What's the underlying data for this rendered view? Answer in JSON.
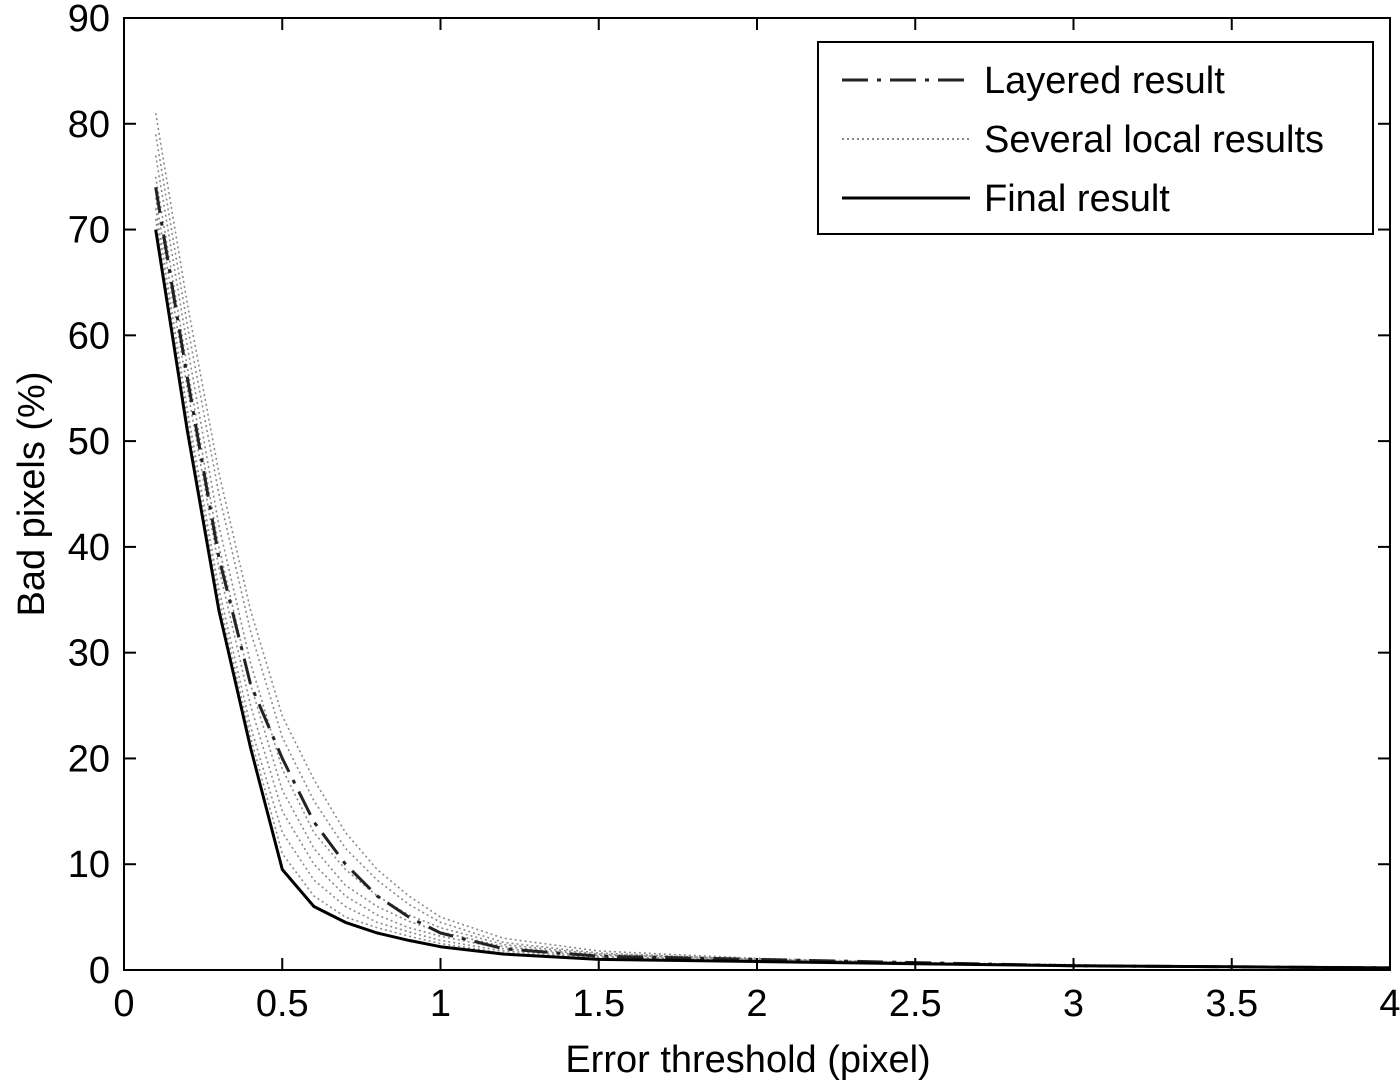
{
  "chart_data": {
    "type": "line",
    "title": "",
    "xlabel": "Error threshold (pixel)",
    "ylabel": "Bad pixels (%)",
    "xlim": [
      0,
      4
    ],
    "ylim": [
      0,
      90
    ],
    "xticks": [
      0,
      0.5,
      1,
      1.5,
      2,
      2.5,
      3,
      3.5,
      4
    ],
    "xtick_labels": [
      "0",
      "0.5",
      "1",
      "1.5",
      "2",
      "2.5",
      "3",
      "3.5",
      "4"
    ],
    "yticks": [
      0,
      10,
      20,
      30,
      40,
      50,
      60,
      70,
      80,
      90
    ],
    "ytick_labels": [
      "0",
      "10",
      "20",
      "30",
      "40",
      "50",
      "60",
      "70",
      "80",
      "90"
    ],
    "grid": false,
    "legend_position": "top-right",
    "colors": {
      "layered": "#222222",
      "local": "#8a8a8a",
      "final": "#000000"
    },
    "series": [
      {
        "name": "Layered result",
        "style": "dashdot",
        "x": [
          0.1,
          0.2,
          0.3,
          0.4,
          0.5,
          0.6,
          0.7,
          0.8,
          0.9,
          1.0,
          1.2,
          1.5,
          2.0,
          2.5,
          3.0,
          3.5,
          4.0
        ],
        "y": [
          74,
          56,
          39,
          27,
          20,
          14,
          10,
          7,
          5,
          3.5,
          2.0,
          1.3,
          1.0,
          0.7,
          0.4,
          0.3,
          0.2
        ]
      },
      {
        "name": "Several local results",
        "style": "dotted",
        "x": [
          0.1,
          0.2,
          0.3,
          0.4,
          0.5,
          0.6,
          0.7,
          0.8,
          0.9,
          1.0,
          1.2,
          1.5,
          2.0,
          2.5,
          3.0,
          3.5,
          4.0
        ],
        "y_family": [
          [
            71,
            52,
            35,
            22,
            11,
            7,
            5,
            4,
            3.2,
            2.5,
            1.6,
            1.1,
            0.8,
            0.6,
            0.4,
            0.3,
            0.2
          ],
          [
            72,
            53,
            36,
            23,
            13,
            8.5,
            6,
            4.5,
            3.6,
            2.8,
            1.8,
            1.2,
            0.9,
            0.6,
            0.4,
            0.3,
            0.2
          ],
          [
            73,
            55,
            38,
            25,
            15,
            10,
            7,
            5.2,
            4,
            3.2,
            2.0,
            1.3,
            0.9,
            0.6,
            0.4,
            0.3,
            0.2
          ],
          [
            75,
            57,
            40,
            27,
            17,
            11.5,
            8,
            6,
            4.6,
            3.6,
            2.2,
            1.4,
            1.0,
            0.7,
            0.4,
            0.3,
            0.2
          ],
          [
            77,
            59,
            42,
            29,
            19,
            13,
            9.5,
            7,
            5.2,
            4.0,
            2.4,
            1.5,
            1.0,
            0.7,
            0.4,
            0.3,
            0.2
          ],
          [
            79,
            61,
            45,
            32,
            22,
            16,
            11.5,
            8.5,
            6.2,
            4.5,
            2.6,
            1.6,
            1.0,
            0.7,
            0.4,
            0.3,
            0.2
          ],
          [
            81,
            63,
            47,
            34,
            24,
            18,
            13,
            9.5,
            7,
            5,
            3,
            1.8,
            1.1,
            0.7,
            0.5,
            0.3,
            0.2
          ]
        ]
      },
      {
        "name": "Final result",
        "style": "solid",
        "x": [
          0.1,
          0.2,
          0.3,
          0.4,
          0.5,
          0.6,
          0.7,
          0.8,
          0.9,
          1.0,
          1.2,
          1.5,
          2.0,
          2.5,
          3.0,
          3.5,
          4.0
        ],
        "y": [
          70,
          51,
          34,
          21,
          9.5,
          6,
          4.5,
          3.5,
          2.8,
          2.2,
          1.5,
          1.0,
          0.8,
          0.6,
          0.4,
          0.3,
          0.2
        ]
      }
    ]
  }
}
